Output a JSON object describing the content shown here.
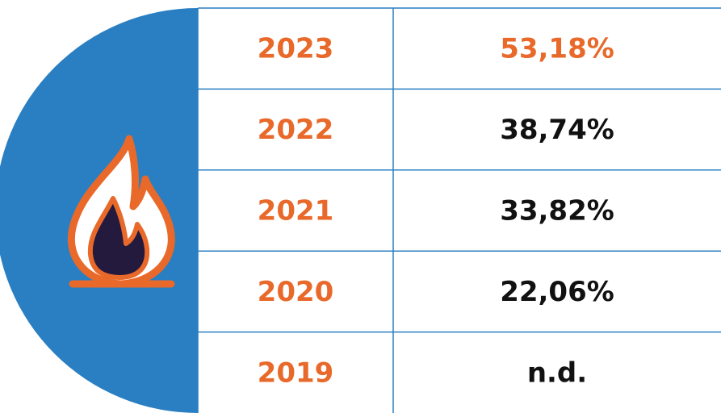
{
  "table": {
    "rows": [
      [
        "2023",
        "53,18%"
      ],
      [
        "2022",
        "38,74%"
      ],
      [
        "2021",
        "33,82%"
      ],
      [
        "2020",
        "22,06%"
      ],
      [
        "2019",
        "n.d."
      ]
    ]
  }
}
